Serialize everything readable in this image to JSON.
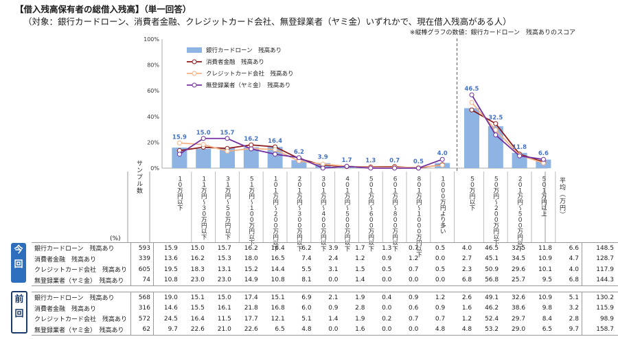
{
  "title": "【借入残高保有者の総借入残高】（単一回答）",
  "subtitle": "（対象：銀行カードローン、消費者金融、クレジットカード会社、無登録業者（ヤミ金）いずれかで、現在借入残高がある人）",
  "note": "※縦棒グラフの数値：銀行カードローン　残高ありのスコア",
  "pct_label": "(%)",
  "row_head_sample": "サンプル数",
  "avg_head": "平均（万円）",
  "column_heads": [
    "１０万円以下",
    "１１万円〜３０万円以下",
    "３１万円〜５０万円以下",
    "５１万円〜１００万円以下",
    "１０１万円〜２００万円以下",
    "２０１万円〜３００万円以下",
    "３０１万円〜４００万円以下",
    "４０１万円〜５００万円以下",
    "５０１万円〜６００万円以下",
    "６０１万円〜８００万円以下",
    "８０１万円〜１０００万円以下",
    "１０００万円より多い",
    "５０万円以下",
    "５０万円〜２００万円以下",
    "２０１万円〜５００万円以下",
    "５０１万円以上"
  ],
  "groups": [
    {
      "tag": "今回",
      "rows": [
        {
          "label": "銀行カードローン　残高あり",
          "n": "593",
          "values": [
            "15.9",
            "15.0",
            "15.7",
            "16.2",
            "16.4",
            "6.2",
            "3.9",
            "1.7",
            "1.3",
            "0.7",
            "0.5",
            "4.0",
            "46.5",
            "32.5",
            "11.8",
            "6.6"
          ],
          "avg": "148.5"
        },
        {
          "label": "消費者金融　残高あり",
          "n": "339",
          "values": [
            "13.6",
            "16.2",
            "15.3",
            "18.0",
            "16.5",
            "7.4",
            "2.4",
            "1.2",
            "0.9",
            "1.2",
            "0.0",
            "2.7",
            "45.1",
            "34.5",
            "10.9",
            "4.7"
          ],
          "avg": "128.7"
        },
        {
          "label": "クレジットカード会社　残高あり",
          "n": "605",
          "values": [
            "19.5",
            "18.3",
            "13.1",
            "15.2",
            "14.4",
            "5.5",
            "3.1",
            "1.5",
            "0.5",
            "0.7",
            "0.5",
            "2.3",
            "50.9",
            "29.6",
            "10.1",
            "4.0"
          ],
          "avg": "117.9"
        },
        {
          "label": "無登録業者（ヤミ金）　残高あり",
          "n": "74",
          "values": [
            "10.8",
            "23.0",
            "23.0",
            "14.9",
            "10.8",
            "8.1",
            "0.0",
            "1.4",
            "0.0",
            "0.0",
            "0.0",
            "6.8",
            "56.8",
            "25.7",
            "9.5",
            "6.8"
          ],
          "avg": "144.3"
        }
      ]
    },
    {
      "tag": "前回",
      "rows": [
        {
          "label": "銀行カードローン　残高あり",
          "n": "568",
          "values": [
            "19.0",
            "15.1",
            "15.0",
            "17.4",
            "15.1",
            "6.9",
            "2.1",
            "1.9",
            "0.4",
            "0.9",
            "1.2",
            "2.6",
            "49.1",
            "32.6",
            "10.9",
            "5.1"
          ],
          "avg": "130.2"
        },
        {
          "label": "消費者金融　残高あり",
          "n": "316",
          "values": [
            "14.6",
            "15.5",
            "16.1",
            "21.8",
            "16.8",
            "6.0",
            "0.9",
            "2.8",
            "0.0",
            "0.6",
            "0.9",
            "1.6",
            "46.2",
            "38.6",
            "9.8",
            "3.2"
          ],
          "avg": "115.9"
        },
        {
          "label": "クレジットカード会社　残高あり",
          "n": "572",
          "values": [
            "24.5",
            "16.4",
            "11.5",
            "17.7",
            "12.1",
            "5.1",
            "1.4",
            "1.9",
            "0.2",
            "0.7",
            "0.7",
            "1.2",
            "52.4",
            "29.7",
            "8.4",
            "2.8"
          ],
          "avg": "98.9"
        },
        {
          "label": "無登録業者（ヤミ金）　残高あり",
          "n": "62",
          "values": [
            "9.7",
            "22.6",
            "21.0",
            "22.6",
            "6.5",
            "4.8",
            "0.0",
            "1.6",
            "0.0",
            "0.0",
            "4.8",
            "4.8",
            "53.2",
            "29.0",
            "6.5",
            "9.7"
          ],
          "avg": "158.7"
        }
      ]
    }
  ],
  "chart_data": {
    "type": "bar",
    "categories": [
      "１０万円以下",
      "１１万円〜３０万円以下",
      "３１万円〜５０万円以下",
      "５１万円〜１００万円以下",
      "１０１万円〜２００万円以下",
      "２０１万円〜３００万円以下",
      "３０１万円〜４００万円以下",
      "４０１万円〜５００万円以下",
      "５０１万円〜６００万円以下",
      "６０１万円〜８００万円以下",
      "８０１万円〜１０００万円以下",
      "１０００万円より多い",
      "５０万円以下",
      "５０万円〜２００万円以下",
      "２０１万円〜５００万円以下",
      "５０１万円以上"
    ],
    "ylim": [
      0,
      100
    ],
    "yticks": [
      "0%",
      "20%",
      "40%",
      "60%",
      "80%",
      "100%"
    ],
    "grid": false,
    "legend_position": "top-left",
    "series": [
      {
        "name": "銀行カードローン　残高あり",
        "kind": "bar",
        "color": "#8eb4e3",
        "values": [
          15.9,
          15.0,
          15.7,
          16.2,
          16.4,
          6.2,
          3.9,
          1.7,
          1.3,
          0.7,
          0.5,
          4.0,
          46.5,
          32.5,
          11.8,
          6.6
        ],
        "labels": [
          "15.9",
          "15.0",
          "15.7",
          "16.2",
          "16.4",
          "6.2",
          "3.9",
          "1.7",
          "1.3",
          "0.7",
          "0.5",
          "4.0",
          "46.5",
          "32.5",
          "11.8",
          "6.6"
        ]
      },
      {
        "name": "消費者金融　残高あり",
        "kind": "line",
        "color": "#8b1a1a",
        "values": [
          13.6,
          16.2,
          15.3,
          18.0,
          16.5,
          7.4,
          2.4,
          1.2,
          0.9,
          1.2,
          0.0,
          2.7,
          45.1,
          34.5,
          10.9,
          4.7
        ]
      },
      {
        "name": "クレジットカード会社　残高あり",
        "kind": "line",
        "color": "#f4b183",
        "values": [
          19.5,
          18.3,
          13.1,
          15.2,
          14.4,
          5.5,
          3.1,
          1.5,
          0.5,
          0.7,
          0.5,
          2.3,
          50.9,
          29.6,
          10.1,
          4.0
        ]
      },
      {
        "name": "無登録業者（ヤミ金）　残高あり",
        "kind": "line",
        "color": "#7030a0",
        "values": [
          10.8,
          23.0,
          23.0,
          14.9,
          10.8,
          8.1,
          0.0,
          1.4,
          0.0,
          0.0,
          0.0,
          6.8,
          56.8,
          25.7,
          9.5,
          6.8
        ]
      }
    ]
  }
}
